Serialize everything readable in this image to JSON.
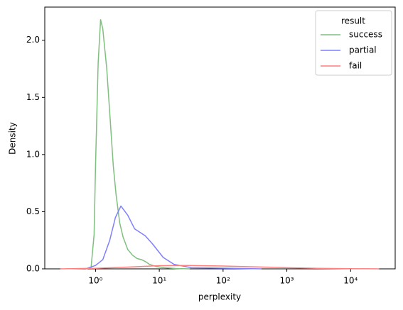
{
  "chart_data": {
    "type": "line",
    "xscale": "log",
    "xlabel": "perplexity",
    "ylabel": "Density",
    "legend_title": "result",
    "legend": "upper right",
    "xlim": [
      0.16,
      50000
    ],
    "ylim": [
      0,
      2.29
    ],
    "xticks": [
      {
        "value": 1,
        "label": "10⁰"
      },
      {
        "value": 10,
        "label": "10¹"
      },
      {
        "value": 100,
        "label": "10²"
      },
      {
        "value": 1000,
        "label": "10³"
      },
      {
        "value": 10000,
        "label": "10⁴"
      }
    ],
    "yticks": [
      {
        "value": 0,
        "label": "0.0"
      },
      0.5,
      {
        "value": 1,
        "label": "1.0"
      },
      1.5,
      {
        "value": 2,
        "label": "2.0"
      }
    ],
    "series": [
      {
        "name": "success",
        "color": "#7fbf7f",
        "x": [
          0.7,
          0.85,
          0.95,
          1.0,
          1.1,
          1.2,
          1.3,
          1.5,
          1.7,
          1.9,
          2.1,
          2.4,
          2.7,
          3.2,
          3.8,
          4.5,
          5.3,
          6.2,
          7,
          9,
          12,
          18,
          30
        ],
        "values": [
          0,
          0.01,
          0.3,
          0.9,
          1.8,
          2.18,
          2.1,
          1.75,
          1.3,
          0.9,
          0.65,
          0.4,
          0.28,
          0.17,
          0.12,
          0.09,
          0.08,
          0.06,
          0.04,
          0.02,
          0.01,
          0.003,
          0
        ]
      },
      {
        "name": "partial",
        "color": "#7f7fff",
        "x": [
          0.7,
          1,
          1.3,
          1.67,
          2.05,
          2.5,
          3.2,
          4.1,
          6,
          7.8,
          11.5,
          17,
          32,
          150,
          400
        ],
        "values": [
          0,
          0.03,
          0.08,
          0.25,
          0.45,
          0.55,
          0.47,
          0.35,
          0.29,
          0.22,
          0.1,
          0.04,
          0.01,
          0.005,
          0
        ]
      },
      {
        "name": "fail",
        "color": "#ff7f7f",
        "x": [
          0.28,
          1,
          3,
          10,
          30,
          100,
          300,
          1000,
          3000,
          10000,
          28000
        ],
        "values": [
          0,
          0.005,
          0.015,
          0.028,
          0.03,
          0.025,
          0.018,
          0.01,
          0.005,
          0.002,
          0
        ]
      }
    ]
  }
}
